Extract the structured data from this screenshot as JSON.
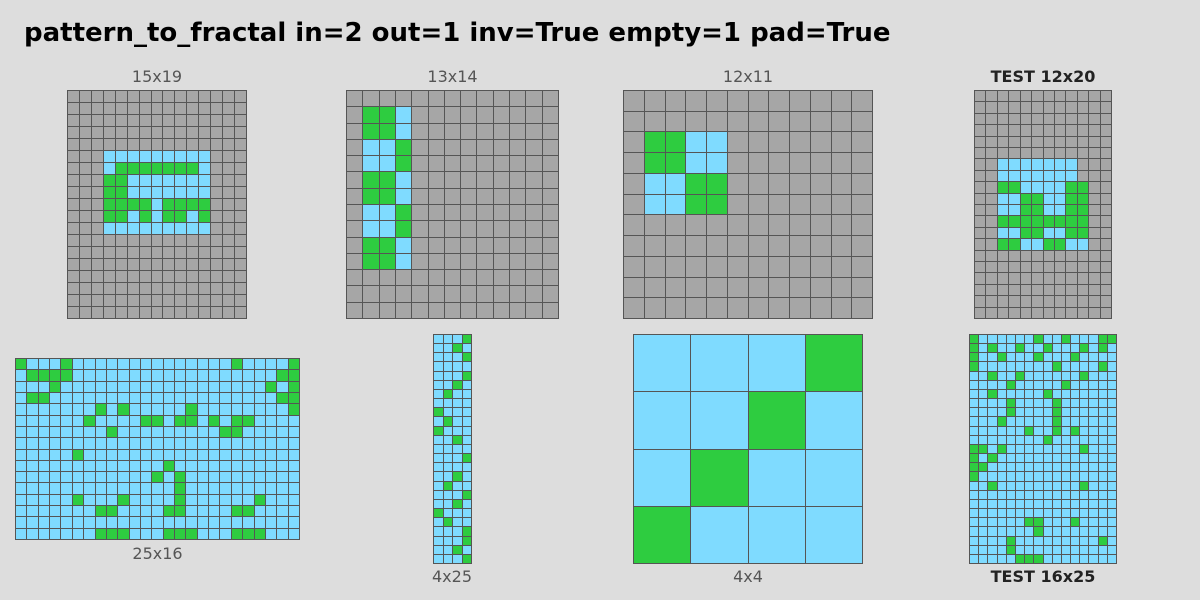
{
  "title": "pattern_to_fractal in=2 out=1 inv=True empty=1 pad=True",
  "colors": {
    "0": "#a6a6a6",
    "1": "#2ecc40",
    "2": "#7fdbff"
  },
  "pairs": [
    {
      "input": {
        "label": "15x19",
        "rows": [
          "000000000000000",
          "000000000000000",
          "000000000000000",
          "000000000000000",
          "000000000000000",
          "000222222222000",
          "000211111112000",
          "000112222222000",
          "000112222222000",
          "000111121111000",
          "000112121121000",
          "000222222222000",
          "000000000000000",
          "000000000000000",
          "000000000000000",
          "000000000000000",
          "000000000000000",
          "000000000000000",
          "000000000000000"
        ]
      },
      "output": {
        "label": "25x16",
        "rows": [
          "1222122222222222222122221",
          "2111122222222222222222211",
          "2221222222222222222222121",
          "2112222222222222222222211",
          "2222222121222221222222221",
          "2222221222211211212112222",
          "2222222212222222221122222",
          "2222222222222222222222222",
          "2222212222222222222222222",
          "2222222222222122222222222",
          "2222222222221212222222222",
          "2222222222222212222222222",
          "2222212221222212222221222",
          "2222222112222112222112222",
          "2222222222222222222222222",
          "2222222111222111222111222"
        ]
      }
    },
    {
      "input": {
        "label": "13x14",
        "rows": [
          "0000000000000",
          "0112000000000",
          "0112000000000",
          "0221000000000",
          "0221000000000",
          "0112000000000",
          "0112000000000",
          "0221000000000",
          "0221000000000",
          "0112000000000",
          "0112000000000",
          "0000000000000",
          "0000000000000",
          "0000000000000"
        ]
      },
      "output": {
        "label": "4x25",
        "rows": [
          "2221",
          "2212",
          "2221",
          "2222",
          "2221",
          "2212",
          "2122",
          "2222",
          "1222",
          "2122",
          "1222",
          "2212",
          "2222",
          "2221",
          "2222",
          "2212",
          "2122",
          "2221",
          "2212",
          "1222",
          "2122",
          "2221",
          "2221",
          "2212",
          "2221"
        ]
      }
    },
    {
      "input": {
        "label": "12x11",
        "rows": [
          "000000000000",
          "000000000000",
          "011220000000",
          "011220000000",
          "022110000000",
          "022110000000",
          "000000000000",
          "000000000000",
          "000000000000",
          "000000000000",
          "000000000000"
        ]
      },
      "output": {
        "label": "4x4",
        "rows": [
          "2221",
          "2212",
          "2122",
          "1222"
        ]
      }
    }
  ],
  "test": {
    "input": {
      "label": "TEST 12x20",
      "rows": [
        "000000000000",
        "000000000000",
        "000000000000",
        "000000000000",
        "000000000000",
        "000000000000",
        "002222222000",
        "002222222000",
        "001122221100",
        "002211221100",
        "002211221100",
        "001111111100",
        "002211221100",
        "001122112200",
        "000000000000",
        "000000000000",
        "000000000000",
        "000000000000",
        "000000000000",
        "000000000000"
      ]
    },
    "output": {
      "label": "TEST 16x25",
      "rows": [
        "1222222122122211",
        "1212212212221212",
        "1221222122212222",
        "1222222221222212",
        "2212212222221222",
        "2222122222122222",
        "2212222212222222",
        "2222122221222222",
        "2222122221222222",
        "2221222221222222",
        "2222221221212222",
        "2222222212222222",
        "1121222222221222",
        "1212222222222222",
        "1122222222222222",
        "1222222222222222",
        "2212222222221222",
        "2222222222222222",
        "2222222222222222",
        "2222222222222222",
        "2222221122212222",
        "2222222122222222",
        "2222122222222212",
        "2222122222222222",
        "2222211122222222"
      ]
    }
  }
}
